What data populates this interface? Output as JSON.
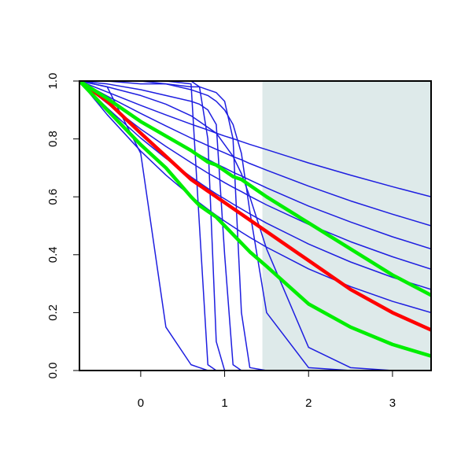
{
  "chart_data": {
    "type": "line",
    "xlim": [
      -0.73,
      3.46
    ],
    "ylim": [
      0,
      1
    ],
    "xticks": [
      0,
      1,
      2,
      3
    ],
    "yticks": [
      {
        "value": 0,
        "label": "0.0"
      },
      {
        "value": 0.2,
        "label": "0.2"
      },
      {
        "value": 0.4,
        "label": "0.4"
      },
      {
        "value": 0.6,
        "label": "0.6"
      },
      {
        "value": 0.8,
        "label": "0.8"
      },
      {
        "value": 1,
        "label": "1.0"
      }
    ],
    "shaded_region": {
      "xlim": [
        1.45,
        3.46
      ],
      "color": "#deeaea"
    },
    "x": [
      -0.73,
      -0.4,
      0,
      0.3,
      0.6,
      0.7,
      0.8,
      0.9,
      1,
      1.1,
      1.2,
      1.3,
      1.5,
      2,
      2.5,
      3,
      3.46
    ],
    "series": [
      {
        "color": "#1e1ee0",
        "width": 1.5,
        "values": [
          1,
          0.962,
          0.916,
          0.883,
          0.851,
          0.841,
          0.831,
          0.82,
          0.81,
          0.801,
          0.791,
          0.781,
          0.763,
          0.717,
          0.675,
          0.635,
          0.6
        ]
      },
      {
        "color": "#1e1ee0",
        "width": 1.5,
        "values": [
          1,
          0.948,
          0.888,
          0.845,
          0.803,
          0.79,
          0.777,
          0.764,
          0.752,
          0.739,
          0.728,
          0.715,
          0.692,
          0.637,
          0.586,
          0.54,
          0.5
        ]
      },
      {
        "color": "#1e1ee0",
        "width": 1.5,
        "values": [
          1,
          0.936,
          0.862,
          0.809,
          0.76,
          0.745,
          0.729,
          0.714,
          0.7,
          0.685,
          0.672,
          0.658,
          0.631,
          0.568,
          0.513,
          0.462,
          0.42
        ]
      },
      {
        "color": "#1e1ee0",
        "width": 1.5,
        "values": [
          1,
          0.923,
          0.834,
          0.774,
          0.718,
          0.7,
          0.682,
          0.666,
          0.649,
          0.633,
          0.618,
          0.602,
          0.572,
          0.505,
          0.445,
          0.393,
          0.35
        ]
      },
      {
        "color": "#1e1ee0",
        "width": 1.5,
        "values": [
          1,
          0.907,
          0.803,
          0.733,
          0.669,
          0.649,
          0.629,
          0.61,
          0.593,
          0.575,
          0.558,
          0.541,
          0.509,
          0.437,
          0.375,
          0.322,
          0.28
        ]
      },
      {
        "color": "#1e1ee0",
        "width": 1.5,
        "values": [
          1,
          0.884,
          0.758,
          0.675,
          0.602,
          0.579,
          0.557,
          0.536,
          0.516,
          0.497,
          0.478,
          0.46,
          0.426,
          0.351,
          0.29,
          0.239,
          0.2
        ]
      },
      {
        "color": "#1e1ee0",
        "width": 1.5,
        "values": [
          1,
          0.98,
          0.75,
          0.15,
          0.02,
          0.01,
          0,
          0,
          0,
          0,
          0,
          0,
          0,
          0,
          0,
          0,
          0
        ]
      },
      {
        "color": "#1e1ee0",
        "width": 1.5,
        "values": [
          1,
          1,
          1,
          1,
          0.99,
          0.5,
          0.02,
          0,
          0,
          0,
          0,
          0,
          0,
          0,
          0,
          0,
          0
        ]
      },
      {
        "color": "#1e1ee0",
        "width": 1.5,
        "values": [
          1,
          1,
          1,
          1,
          1,
          0.98,
          0.8,
          0.1,
          0,
          0,
          0,
          0,
          0,
          0,
          0,
          0,
          0
        ]
      },
      {
        "color": "#1e1ee0",
        "width": 1.5,
        "values": [
          1,
          0.99,
          0.97,
          0.95,
          0.93,
          0.92,
          0.9,
          0.85,
          0.4,
          0.02,
          0,
          0,
          0,
          0,
          0,
          0,
          0
        ]
      },
      {
        "color": "#1e1ee0",
        "width": 1.5,
        "values": [
          1,
          1,
          0.99,
          0.99,
          0.98,
          0.98,
          0.97,
          0.96,
          0.93,
          0.8,
          0.2,
          0.01,
          0,
          0,
          0,
          0,
          0
        ]
      },
      {
        "color": "#1e1ee0",
        "width": 1.5,
        "values": [
          1,
          1,
          1,
          0.99,
          0.97,
          0.96,
          0.95,
          0.93,
          0.9,
          0.85,
          0.75,
          0.55,
          0.2,
          0.01,
          0,
          0,
          0
        ]
      },
      {
        "color": "#1e1ee0",
        "width": 1.5,
        "values": [
          1,
          0.98,
          0.95,
          0.92,
          0.88,
          0.86,
          0.84,
          0.82,
          0.78,
          0.74,
          0.68,
          0.6,
          0.42,
          0.08,
          0.01,
          0,
          0
        ]
      },
      {
        "color": "#ff0000",
        "width": 4.5,
        "values": [
          1,
          0.93,
          0.82,
          0.74,
          0.66,
          0.64,
          0.62,
          0.6,
          0.58,
          0.56,
          0.54,
          0.52,
          0.48,
          0.38,
          0.28,
          0.2,
          0.14
        ]
      },
      {
        "color": "#00ee00",
        "width": 4.5,
        "values": [
          1,
          0.9,
          0.78,
          0.7,
          0.6,
          0.57,
          0.55,
          0.53,
          0.5,
          0.47,
          0.44,
          0.41,
          0.36,
          0.23,
          0.15,
          0.09,
          0.05
        ]
      },
      {
        "color": "#00ee00",
        "width": 4.5,
        "values": [
          1,
          0.94,
          0.86,
          0.81,
          0.76,
          0.74,
          0.72,
          0.71,
          0.69,
          0.67,
          0.66,
          0.64,
          0.6,
          0.51,
          0.42,
          0.33,
          0.26
        ]
      }
    ]
  }
}
